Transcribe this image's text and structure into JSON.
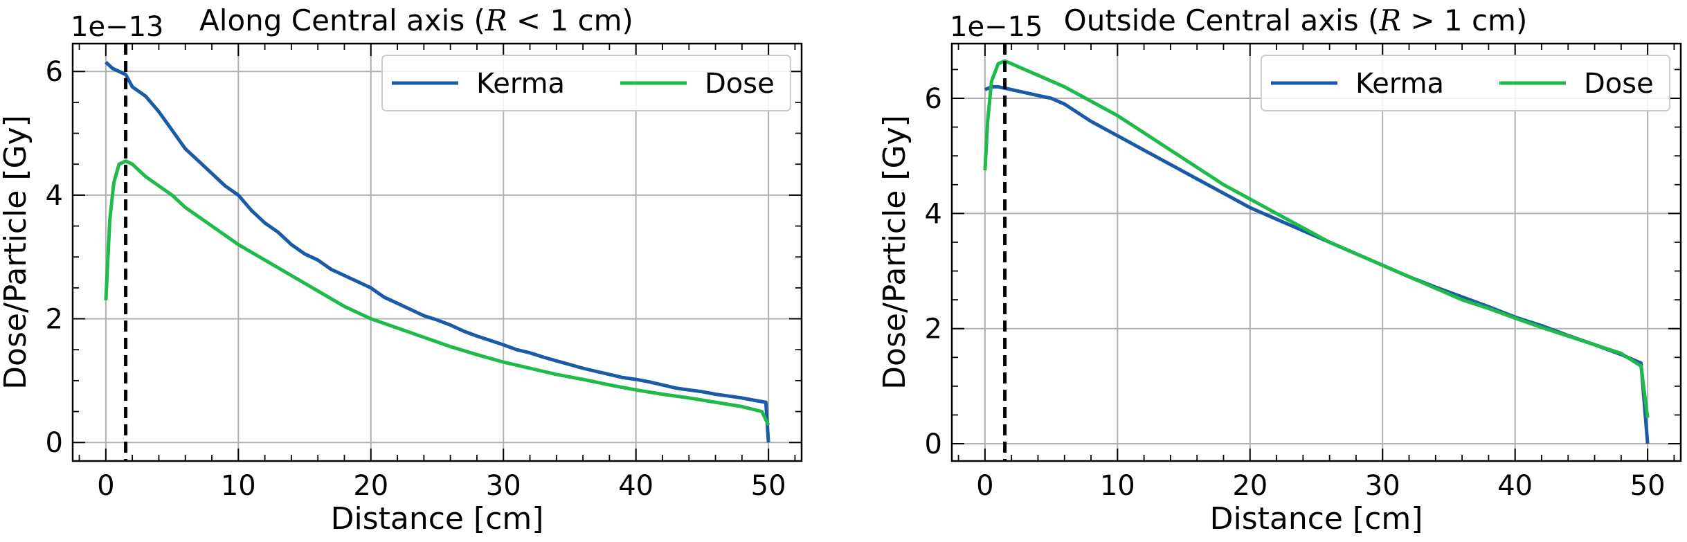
{
  "chart_data": [
    {
      "type": "line",
      "title": "Along Central axis (R < 1 cm)",
      "title_parts": {
        "before": "Along Central axis (",
        "var": "R",
        "op": " < ",
        "after": "1 cm)"
      },
      "xlabel": "Distance [cm]",
      "ylabel": "Dose/Particle [Gy]",
      "offset_text": "1e−13",
      "xlim": [
        -2.5,
        52.5
      ],
      "ylim": [
        -0.3,
        6.45
      ],
      "xticks": [
        0,
        10,
        20,
        30,
        40,
        50
      ],
      "yticks": [
        0,
        2,
        4,
        6
      ],
      "xtick_labels": [
        "0",
        "10",
        "20",
        "30",
        "40",
        "50"
      ],
      "ytick_labels": [
        "0",
        "2",
        "4",
        "6"
      ],
      "vline_x": 1.5,
      "grid": true,
      "legend_position": "top-right",
      "series": [
        {
          "name": "Kerma",
          "color": "#1a5aa6",
          "x": [
            0,
            0.5,
            1,
            1.5,
            2,
            3,
            4,
            5,
            6,
            7,
            8,
            9,
            10,
            11,
            12,
            13,
            14,
            15,
            16,
            17,
            18,
            19,
            20,
            21,
            22,
            23,
            24,
            25,
            26,
            27,
            28,
            29,
            30,
            31,
            32,
            33,
            34,
            35,
            36,
            37,
            38,
            39,
            40,
            41,
            42,
            43,
            44,
            45,
            46,
            47,
            48,
            49,
            49.8,
            50
          ],
          "y": [
            6.15,
            6.05,
            6.0,
            5.95,
            5.75,
            5.6,
            5.35,
            5.05,
            4.75,
            4.55,
            4.35,
            4.15,
            4.0,
            3.75,
            3.55,
            3.4,
            3.2,
            3.05,
            2.95,
            2.8,
            2.7,
            2.6,
            2.5,
            2.35,
            2.25,
            2.15,
            2.05,
            1.98,
            1.9,
            1.8,
            1.72,
            1.65,
            1.58,
            1.5,
            1.45,
            1.38,
            1.32,
            1.26,
            1.2,
            1.15,
            1.1,
            1.05,
            1.02,
            0.98,
            0.93,
            0.88,
            0.85,
            0.82,
            0.78,
            0.75,
            0.72,
            0.68,
            0.65,
            0.0
          ]
        },
        {
          "name": "Dose",
          "color": "#1fba4a",
          "x": [
            0,
            0.3,
            0.6,
            1,
            1.5,
            2,
            3,
            4,
            5,
            6,
            7,
            8,
            9,
            10,
            12,
            14,
            16,
            18,
            20,
            22,
            24,
            26,
            28,
            30,
            32,
            34,
            36,
            38,
            40,
            42,
            44,
            46,
            48,
            49.5,
            50
          ],
          "y": [
            2.3,
            3.6,
            4.2,
            4.5,
            4.55,
            4.5,
            4.3,
            4.15,
            4.0,
            3.8,
            3.65,
            3.5,
            3.35,
            3.2,
            2.95,
            2.7,
            2.45,
            2.2,
            2.0,
            1.85,
            1.7,
            1.55,
            1.42,
            1.3,
            1.2,
            1.1,
            1.02,
            0.93,
            0.85,
            0.78,
            0.72,
            0.65,
            0.58,
            0.5,
            0.28
          ]
        }
      ]
    },
    {
      "type": "line",
      "title": "Outside Central axis (R > 1 cm)",
      "title_parts": {
        "before": "Outside Central axis (",
        "var": "R",
        "op": " > ",
        "after": "1 cm)"
      },
      "xlabel": "Distance [cm]",
      "ylabel": "Dose/Particle [Gy]",
      "offset_text": "1e−15",
      "xlim": [
        -2.5,
        52.5
      ],
      "ylim": [
        -0.3,
        6.95
      ],
      "xticks": [
        0,
        10,
        20,
        30,
        40,
        50
      ],
      "yticks": [
        0,
        2,
        4,
        6
      ],
      "xtick_labels": [
        "0",
        "10",
        "20",
        "30",
        "40",
        "50"
      ],
      "ytick_labels": [
        "0",
        "2",
        "4",
        "6"
      ],
      "vline_x": 1.5,
      "grid": true,
      "legend_position": "top-right",
      "series": [
        {
          "name": "Kerma",
          "color": "#1a5aa6",
          "x": [
            0,
            0.5,
            1,
            2,
            3,
            4,
            5,
            6,
            8,
            10,
            12,
            14,
            16,
            18,
            20,
            22,
            24,
            26,
            28,
            30,
            32,
            34,
            36,
            38,
            40,
            42,
            44,
            46,
            48,
            49.5,
            50
          ],
          "y": [
            6.15,
            6.2,
            6.2,
            6.15,
            6.1,
            6.05,
            6.0,
            5.9,
            5.6,
            5.35,
            5.1,
            4.85,
            4.6,
            4.35,
            4.1,
            3.9,
            3.7,
            3.5,
            3.3,
            3.1,
            2.9,
            2.72,
            2.55,
            2.38,
            2.2,
            2.05,
            1.88,
            1.72,
            1.55,
            1.4,
            0.0
          ]
        },
        {
          "name": "Dose",
          "color": "#1fba4a",
          "x": [
            0,
            0.2,
            0.5,
            1,
            1.5,
            2,
            3,
            4,
            5,
            6,
            8,
            10,
            12,
            14,
            16,
            18,
            20,
            22,
            24,
            26,
            28,
            30,
            32,
            34,
            36,
            38,
            40,
            42,
            44,
            46,
            48,
            49.5,
            50
          ],
          "y": [
            4.75,
            5.6,
            6.3,
            6.6,
            6.65,
            6.6,
            6.5,
            6.4,
            6.3,
            6.2,
            5.95,
            5.7,
            5.4,
            5.1,
            4.8,
            4.5,
            4.25,
            4.0,
            3.75,
            3.5,
            3.3,
            3.1,
            2.9,
            2.7,
            2.5,
            2.35,
            2.18,
            2.02,
            1.87,
            1.72,
            1.57,
            1.35,
            0.45
          ]
        }
      ]
    }
  ]
}
